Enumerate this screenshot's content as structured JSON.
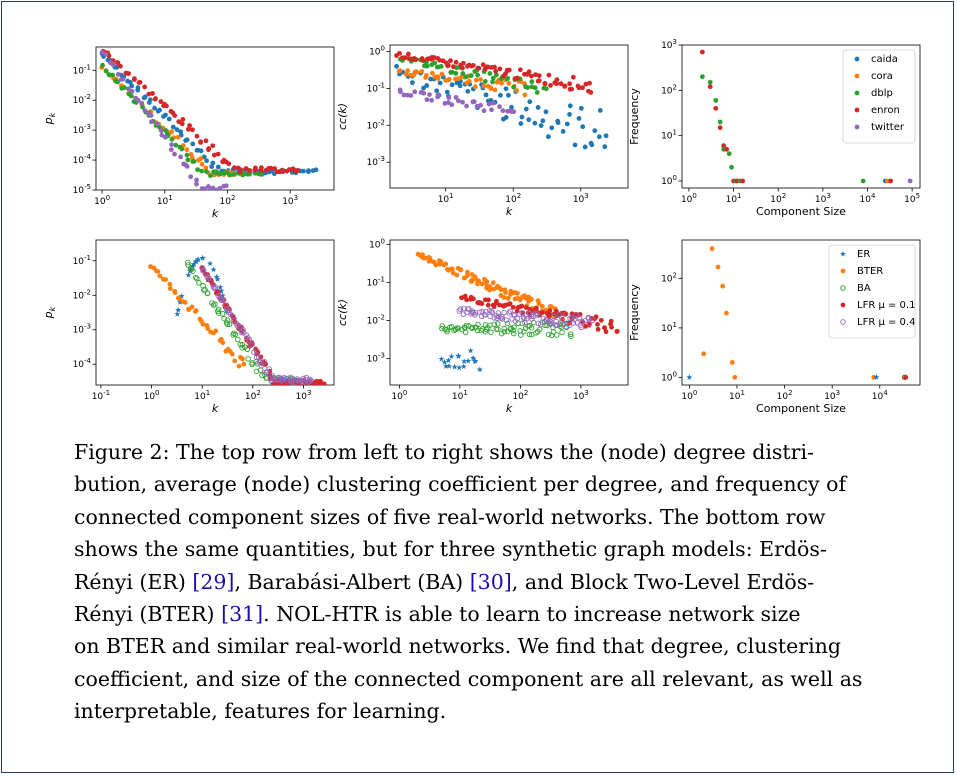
{
  "colors": {
    "caida": "#1f77b4",
    "cora": "#ff7f0e",
    "dblp": "#2ca02c",
    "enron": "#d62728",
    "twitter": "#9467bd",
    "ER": "#1f77b4",
    "BTER": "#ff7f0e",
    "BA": "#2ca02c",
    "LFR1": "#d62728",
    "LFR4": "#9467bd",
    "frame": "#1f3f66",
    "citation": "#1a0dab"
  },
  "chart_data": [
    {
      "id": "top-degree",
      "type": "scatter",
      "scale": "log-log",
      "xlabel": "k",
      "ylabel": "p_k",
      "xlim": [
        0.8,
        5000
      ],
      "ylim": [
        1e-05,
        0.6
      ],
      "xticks": [
        1,
        10,
        100,
        1000
      ],
      "xticklabels": [
        "10^0",
        "10^1",
        "10^2",
        "10^3"
      ],
      "yticks": [
        1e-05,
        0.0001,
        0.001,
        0.01,
        0.1
      ],
      "yticklabels": [
        "10^-5",
        "10^-4",
        "10^-3",
        "10^-2",
        "10^-1"
      ],
      "series": [
        {
          "key": "caida",
          "marker": "dot",
          "kmin": 1,
          "kmax": 2600,
          "a": 0.35,
          "slope": -2.1,
          "floor": 3.5e-05,
          "n": 70
        },
        {
          "key": "cora",
          "marker": "dot",
          "kmin": 1,
          "kmax": 170,
          "a": 0.12,
          "slope": -2.0,
          "floor": 3e-05,
          "n": 45
        },
        {
          "key": "dblp",
          "marker": "dot",
          "kmin": 1,
          "kmax": 340,
          "a": 0.14,
          "slope": -2.2,
          "floor": 3e-05,
          "n": 50
        },
        {
          "key": "enron",
          "marker": "dot",
          "kmin": 1,
          "kmax": 1400,
          "a": 0.5,
          "slope": -1.9,
          "floor": 4e-05,
          "n": 70
        },
        {
          "key": "twitter",
          "marker": "dot",
          "kmin": 1,
          "kmax": 100,
          "a": 0.45,
          "slope": -2.9,
          "floor": 1e-05,
          "n": 40
        }
      ]
    },
    {
      "id": "top-clustering",
      "type": "scatter",
      "scale": "log-log",
      "xlabel": "k",
      "ylabel": "cc(k)",
      "xlim": [
        1.5,
        5000
      ],
      "ylim": [
        0.0002,
        1.5
      ],
      "xticks": [
        10,
        100,
        1000
      ],
      "xticklabels": [
        "10^1",
        "10^2",
        "10^3"
      ],
      "yticks": [
        0.001,
        0.01,
        0.1,
        1
      ],
      "yticklabels": [
        "10^-3",
        "10^-2",
        "10^-1",
        "10^0"
      ],
      "series": [
        {
          "key": "caida",
          "marker": "dot",
          "kmin": 2,
          "kmax": 2500,
          "a": 0.4,
          "slope": -0.55,
          "floor": 0.0003,
          "n": 70,
          "scatter": 0.9
        },
        {
          "key": "cora",
          "marker": "dot",
          "kmin": 2,
          "kmax": 160,
          "a": 0.35,
          "slope": -0.25,
          "floor": 0.01,
          "n": 45
        },
        {
          "key": "dblp",
          "marker": "dot",
          "kmin": 2,
          "kmax": 300,
          "a": 0.9,
          "slope": -0.4,
          "floor": 0.02,
          "n": 50
        },
        {
          "key": "enron",
          "marker": "dot",
          "kmin": 2,
          "kmax": 1500,
          "a": 1.0,
          "slope": -0.3,
          "floor": 0.003,
          "n": 80
        },
        {
          "key": "twitter",
          "marker": "dot",
          "kmin": 2,
          "kmax": 110,
          "a": 0.1,
          "slope": -0.3,
          "floor": 0.02,
          "n": 35
        }
      ]
    },
    {
      "id": "top-components",
      "type": "scatter",
      "scale": "log-log",
      "xlabel": "Component Size",
      "ylabel": "Frequency",
      "xlim": [
        0.7,
        150000
      ],
      "ylim": [
        0.7,
        1000
      ],
      "xticks": [
        1,
        10,
        100,
        1000,
        10000,
        100000
      ],
      "xticklabels": [
        "10^0",
        "10^1",
        "10^2",
        "10^3",
        "10^4",
        "10^5"
      ],
      "yticks": [
        1,
        10,
        100,
        1000
      ],
      "yticklabels": [
        "10^0",
        "10^1",
        "10^2",
        "10^3"
      ],
      "legend": {
        "position": "upper right",
        "entries": [
          {
            "key": "caida",
            "label": "caida",
            "marker": "dot"
          },
          {
            "key": "cora",
            "label": "cora",
            "marker": "dot"
          },
          {
            "key": "dblp",
            "label": "dblp",
            "marker": "dot"
          },
          {
            "key": "enron",
            "label": "enron",
            "marker": "dot"
          },
          {
            "key": "twitter",
            "label": "twitter",
            "marker": "dot"
          }
        ]
      },
      "points": [
        {
          "key": "enron",
          "x": 2,
          "y": 700
        },
        {
          "key": "dblp",
          "x": 2,
          "y": 200
        },
        {
          "key": "dblp",
          "x": 3,
          "y": 150
        },
        {
          "key": "enron",
          "x": 3,
          "y": 120
        },
        {
          "key": "dblp",
          "x": 4,
          "y": 60
        },
        {
          "key": "enron",
          "x": 4,
          "y": 40
        },
        {
          "key": "dblp",
          "x": 5,
          "y": 20
        },
        {
          "key": "enron",
          "x": 5,
          "y": 15
        },
        {
          "key": "enron",
          "x": 6,
          "y": 6
        },
        {
          "key": "dblp",
          "x": 6,
          "y": 5
        },
        {
          "key": "enron",
          "x": 7,
          "y": 5
        },
        {
          "key": "dblp",
          "x": 8,
          "y": 4
        },
        {
          "key": "dblp",
          "x": 9,
          "y": 2
        },
        {
          "key": "enron",
          "x": 10,
          "y": 1
        },
        {
          "key": "dblp",
          "x": 11,
          "y": 1
        },
        {
          "key": "enron",
          "x": 12,
          "y": 1
        },
        {
          "key": "dblp",
          "x": 14,
          "y": 1
        },
        {
          "key": "enron",
          "x": 16,
          "y": 1
        },
        {
          "key": "dblp",
          "x": 8000,
          "y": 1
        },
        {
          "key": "caida",
          "x": 25000,
          "y": 1
        },
        {
          "key": "cora",
          "x": 28000,
          "y": 1
        },
        {
          "key": "enron",
          "x": 33000,
          "y": 1
        },
        {
          "key": "twitter",
          "x": 90000,
          "y": 1
        }
      ]
    },
    {
      "id": "bottom-degree",
      "type": "scatter",
      "scale": "log-log",
      "xlabel": "k",
      "ylabel": "p_k",
      "xlim": [
        0.08,
        4000
      ],
      "ylim": [
        2.5e-05,
        0.4
      ],
      "xticks": [
        0.1,
        1,
        10,
        100,
        1000
      ],
      "xticklabels": [
        "10^-1",
        "10^0",
        "10^1",
        "10^2",
        "10^3"
      ],
      "yticks": [
        0.0001,
        0.001,
        0.01,
        0.1
      ],
      "yticklabels": [
        "10^-4",
        "10^-3",
        "10^-2",
        "10^-1"
      ],
      "series": [
        {
          "key": "ER",
          "marker": "star",
          "peak": 10,
          "width": 0.18,
          "n": 30,
          "kmin": 0.1,
          "kmax": 20
        },
        {
          "key": "BTER",
          "marker": "dot",
          "kmin": 1,
          "kmax": 70,
          "a": 0.07,
          "slope": -1.6,
          "floor": 5e-05,
          "n": 40
        },
        {
          "key": "BA",
          "marker": "ring",
          "kmin": 5,
          "kmax": 700,
          "a": 3.0,
          "slope": -2.2,
          "floor": 3e-05,
          "n": 60
        },
        {
          "key": "LFR1",
          "marker": "dot",
          "kmin": 10,
          "kmax": 2500,
          "a": 12,
          "slope": -2.3,
          "floor": 2.5e-05,
          "n": 80
        },
        {
          "key": "LFR4",
          "marker": "ring",
          "kmin": 10,
          "kmax": 1500,
          "a": 12,
          "slope": -2.3,
          "floor": 3e-05,
          "n": 80
        }
      ]
    },
    {
      "id": "bottom-clustering",
      "type": "scatter",
      "scale": "log-log",
      "xlabel": "k",
      "ylabel": "cc(k)",
      "xlim": [
        0.7,
        6000
      ],
      "ylim": [
        0.0002,
        1.3
      ],
      "xticks": [
        1,
        10,
        100,
        1000
      ],
      "xticklabels": [
        "10^0",
        "10^1",
        "10^2",
        "10^3"
      ],
      "yticks": [
        0.001,
        0.01,
        0.1,
        1
      ],
      "yticklabels": [
        "10^-3",
        "10^-2",
        "10^-1",
        "10^0"
      ],
      "series": [
        {
          "key": "ER",
          "marker": "star",
          "kmin": 5,
          "kmax": 20,
          "a": 0.0008,
          "slope": 0.0,
          "floor": 0.0003,
          "n": 18,
          "scatter": 0.5
        },
        {
          "key": "BTER",
          "marker": "dot",
          "kmin": 2,
          "kmax": 400,
          "a": 0.9,
          "slope": -0.7,
          "floor": 0.01,
          "n": 90
        },
        {
          "key": "BA",
          "marker": "ring",
          "kmin": 5,
          "kmax": 700,
          "a": 0.006,
          "slope": 0.0,
          "floor": 0.003,
          "n": 80,
          "scatter": 0.3
        },
        {
          "key": "LFR1",
          "marker": "dot",
          "kmin": 10,
          "kmax": 4000,
          "a": 0.08,
          "slope": -0.3,
          "floor": 0.005,
          "n": 80
        },
        {
          "key": "LFR4",
          "marker": "ring",
          "kmin": 10,
          "kmax": 1500,
          "a": 0.025,
          "slope": -0.15,
          "floor": 0.006,
          "n": 90,
          "scatter": 0.3
        }
      ]
    },
    {
      "id": "bottom-components",
      "type": "scatter",
      "scale": "log-log",
      "xlabel": "Component Size",
      "ylabel": "Frequency",
      "xlim": [
        0.7,
        70000
      ],
      "ylim": [
        0.7,
        600
      ],
      "xticks": [
        1,
        10,
        100,
        1000,
        10000
      ],
      "xticklabels": [
        "10^0",
        "10^1",
        "10^2",
        "10^3",
        "10^4"
      ],
      "yticks": [
        1,
        10,
        100
      ],
      "yticklabels": [
        "10^0",
        "10^1",
        "10^2"
      ],
      "legend": {
        "position": "upper right",
        "entries": [
          {
            "key": "ER",
            "label": "ER",
            "marker": "star"
          },
          {
            "key": "BTER",
            "label": "BTER",
            "marker": "dot"
          },
          {
            "key": "BA",
            "label": "BA",
            "marker": "ring"
          },
          {
            "key": "LFR1",
            "label": "LFR μ = 0.1",
            "marker": "dot"
          },
          {
            "key": "LFR4",
            "label": "LFR μ = 0.4",
            "marker": "ring"
          }
        ]
      },
      "points": [
        {
          "key": "ER",
          "x": 1,
          "y": 1
        },
        {
          "key": "BTER",
          "x": 2,
          "y": 3
        },
        {
          "key": "BTER",
          "x": 3,
          "y": 400
        },
        {
          "key": "BTER",
          "x": 4,
          "y": 170
        },
        {
          "key": "BTER",
          "x": 5,
          "y": 70
        },
        {
          "key": "BTER",
          "x": 6,
          "y": 20
        },
        {
          "key": "BTER",
          "x": 8,
          "y": 2
        },
        {
          "key": "BTER",
          "x": 9,
          "y": 1
        },
        {
          "key": "BTER",
          "x": 7500,
          "y": 1
        },
        {
          "key": "ER",
          "x": 8500,
          "y": 1
        },
        {
          "key": "LFR4",
          "x": 33000,
          "y": 1
        },
        {
          "key": "BA",
          "x": 34000,
          "y": 1
        },
        {
          "key": "LFR1",
          "x": 35000,
          "y": 1
        }
      ]
    }
  ],
  "caption": {
    "lines": [
      "Figure 2: The top row from left to right shows the (node) degree distri-",
      "bution, average (node) clustering coefficient per degree, and frequency of",
      "connected component sizes of five real-world networks. The bottom row",
      "shows the same quantities, but for three synthetic graph models: Erdös-",
      [
        "Rényi (ER) ",
        "[29]",
        ", Barabási-Albert (BA) ",
        "[30]",
        ", and Block Two-Level Erdös-"
      ],
      [
        "Rényi (BTER) ",
        "[31]",
        ". NOL-HTR is able to learn to increase network size"
      ],
      "on BTER and similar real-world networks. We find that degree, clustering",
      "coefficient, and size of the connected component are all relevant, as well as",
      "interpretable, features for learning."
    ]
  }
}
